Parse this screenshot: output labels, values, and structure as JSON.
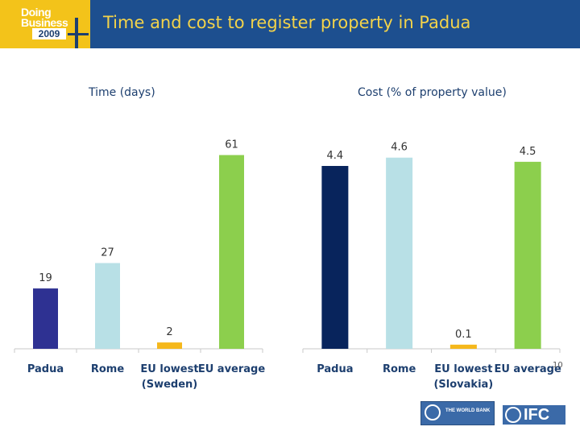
{
  "header": {
    "logo_line1": "Doing",
    "logo_line2": "Business",
    "logo_year": "2009",
    "title": "Time and cost to register property in Padua"
  },
  "page_number": "10",
  "logos": {
    "world_bank": "THE WORLD BANK",
    "ifc": "IFC"
  },
  "colors": {
    "header_bg": "#1d4f8f",
    "title": "#f3d34a",
    "logo_bg": "#f3c31a"
  },
  "chart_data": [
    {
      "type": "bar",
      "title": "Time (days)",
      "categories": [
        [
          "Padua"
        ],
        [
          "Rome"
        ],
        [
          "EU lowest",
          "(Sweden)"
        ],
        [
          "EU average"
        ]
      ],
      "values": [
        19,
        27,
        2,
        61
      ],
      "value_labels": [
        "19",
        "27",
        "2",
        "61"
      ],
      "colors": [
        "#2e3192",
        "#b8e0e6",
        "#f5b81c",
        "#8ccf4d"
      ],
      "ylim": [
        0,
        70
      ],
      "grid": false,
      "xlabel": "",
      "ylabel": ""
    },
    {
      "type": "bar",
      "title": "Cost (% of property  value)",
      "categories": [
        [
          "Padua"
        ],
        [
          "Rome"
        ],
        [
          "EU lowest",
          "(Slovakia)"
        ],
        [
          "EU average"
        ]
      ],
      "values": [
        4.4,
        4.6,
        0.1,
        4.5
      ],
      "value_labels": [
        "4.4",
        "4.6",
        "0.1",
        "4.5"
      ],
      "colors": [
        "#08245c",
        "#b8e0e6",
        "#f5b81c",
        "#8ccf4d"
      ],
      "ylim": [
        0,
        5.35
      ],
      "grid": false,
      "xlabel": "",
      "ylabel": ""
    }
  ]
}
